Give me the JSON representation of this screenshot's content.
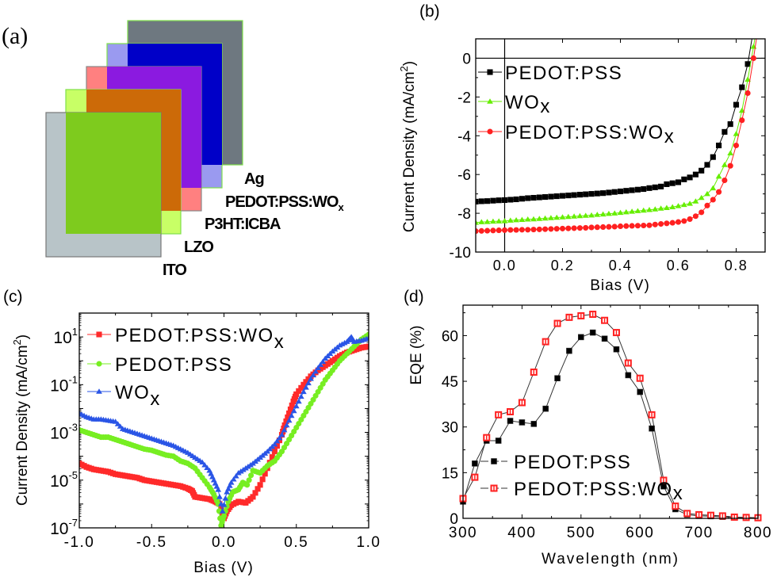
{
  "panel_labels": {
    "a": "(a)",
    "b": "(b)",
    "c": "(c)",
    "d": "(d)"
  },
  "device_stack": {
    "layers": [
      {
        "name": "Ag",
        "color": "#6e7880",
        "edge": "#7fe04a"
      },
      {
        "name": "PEDOT:PSS:WOx",
        "label_main": "PEDOT:PSS:WO",
        "label_sub": "x",
        "color": "#0000c8",
        "light": "#9a9af0",
        "edge": "#7fe04a"
      },
      {
        "name": "P3HT:ICBA",
        "color": "#8b1ae0",
        "light": "#ff8080",
        "edge": "#888888"
      },
      {
        "name": "LZO",
        "color": "#cc6a08",
        "light": "#c8ff66",
        "edge": "#7fe04a"
      },
      {
        "name": "ITO",
        "color": "#7ecb1e",
        "light": "#b8c4c8",
        "edge": "#777777"
      }
    ]
  },
  "chart_data": [
    {
      "id": "b",
      "type": "line",
      "title": "",
      "xlabel": "Bias (V)",
      "ylabel": "Current Density (mA/cm",
      "ylabel_sup": "2",
      "ylabel_end": ")",
      "xlim": [
        -0.1,
        0.9
      ],
      "ylim": [
        -10,
        1
      ],
      "xticks": [
        0.0,
        0.2,
        0.4,
        0.6,
        0.8
      ],
      "xtick_labels": [
        "0.0",
        "0.2",
        "0.4",
        "0.6",
        "0.8"
      ],
      "yticks": [
        0,
        -2,
        -4,
        -6,
        -8,
        -10
      ],
      "ytick_labels": [
        "0",
        "-2",
        "-4",
        "-6",
        "-8",
        "-10"
      ],
      "reference_lines": {
        "x": 0,
        "y": 0
      },
      "legend_position": "top-left",
      "series": [
        {
          "name": "PEDOT:PSS",
          "label_main": "PEDOT:PSS",
          "label_sub": "",
          "color": "#000000",
          "marker": "square",
          "x": [
            -0.1,
            -0.08,
            -0.06,
            -0.04,
            -0.02,
            0,
            0.02,
            0.04,
            0.06,
            0.08,
            0.1,
            0.12,
            0.14,
            0.16,
            0.18,
            0.2,
            0.22,
            0.24,
            0.26,
            0.28,
            0.3,
            0.32,
            0.34,
            0.36,
            0.38,
            0.4,
            0.42,
            0.44,
            0.46,
            0.48,
            0.5,
            0.52,
            0.54,
            0.56,
            0.58,
            0.6,
            0.62,
            0.64,
            0.66,
            0.68,
            0.7,
            0.72,
            0.74,
            0.76,
            0.78,
            0.8,
            0.82,
            0.84,
            0.86
          ],
          "y": [
            -7.4,
            -7.38,
            -7.37,
            -7.35,
            -7.33,
            -7.32,
            -7.3,
            -7.28,
            -7.25,
            -7.22,
            -7.2,
            -7.18,
            -7.16,
            -7.14,
            -7.12,
            -7.1,
            -7.08,
            -7.06,
            -7.04,
            -7.02,
            -7.0,
            -6.98,
            -6.96,
            -6.93,
            -6.9,
            -6.87,
            -6.84,
            -6.81,
            -6.78,
            -6.75,
            -6.7,
            -6.66,
            -6.62,
            -6.5,
            -6.45,
            -6.4,
            -6.25,
            -6.15,
            -6.0,
            -5.8,
            -5.5,
            -5.1,
            -4.5,
            -3.8,
            -3.4,
            -2.4,
            -1.5,
            -0.3,
            1.5
          ]
        },
        {
          "name": "WOx",
          "label_main": "WO",
          "label_sub": "x",
          "color": "#66ee00",
          "marker": "triangle",
          "x": [
            -0.1,
            -0.08,
            -0.06,
            -0.04,
            -0.02,
            0,
            0.02,
            0.04,
            0.06,
            0.08,
            0.1,
            0.12,
            0.14,
            0.16,
            0.18,
            0.2,
            0.22,
            0.24,
            0.26,
            0.28,
            0.3,
            0.32,
            0.34,
            0.36,
            0.38,
            0.4,
            0.42,
            0.44,
            0.46,
            0.48,
            0.5,
            0.52,
            0.54,
            0.56,
            0.58,
            0.6,
            0.62,
            0.64,
            0.66,
            0.68,
            0.7,
            0.72,
            0.74,
            0.76,
            0.78,
            0.8,
            0.82,
            0.84,
            0.86,
            0.87
          ],
          "y": [
            -8.48,
            -8.45,
            -8.44,
            -8.42,
            -8.41,
            -8.4,
            -8.37,
            -8.35,
            -8.33,
            -8.31,
            -8.3,
            -8.28,
            -8.26,
            -8.24,
            -8.22,
            -8.2,
            -8.18,
            -8.16,
            -8.14,
            -8.12,
            -8.1,
            -8.07,
            -8.05,
            -8.02,
            -8.0,
            -7.97,
            -7.94,
            -7.91,
            -7.88,
            -7.85,
            -7.82,
            -7.79,
            -7.75,
            -7.72,
            -7.68,
            -7.62,
            -7.56,
            -7.5,
            -7.38,
            -7.2,
            -7.0,
            -6.7,
            -6.1,
            -5.5,
            -4.9,
            -3.9,
            -2.7,
            -1.1,
            0.6,
            1.5
          ]
        },
        {
          "name": "PEDOT:PSS:WOx",
          "label_main": "PEDOT:PSS:WO",
          "label_sub": "x",
          "color": "#ff2020",
          "marker": "circle",
          "x": [
            -0.1,
            -0.08,
            -0.06,
            -0.04,
            -0.02,
            0,
            0.02,
            0.04,
            0.06,
            0.08,
            0.1,
            0.12,
            0.14,
            0.16,
            0.18,
            0.2,
            0.22,
            0.24,
            0.26,
            0.28,
            0.3,
            0.32,
            0.34,
            0.36,
            0.38,
            0.4,
            0.42,
            0.44,
            0.46,
            0.48,
            0.5,
            0.52,
            0.54,
            0.56,
            0.58,
            0.6,
            0.62,
            0.64,
            0.66,
            0.68,
            0.7,
            0.72,
            0.74,
            0.76,
            0.78,
            0.8,
            0.82,
            0.84,
            0.86,
            0.875
          ],
          "y": [
            -8.92,
            -8.91,
            -8.9,
            -8.89,
            -8.88,
            -8.87,
            -8.86,
            -8.86,
            -8.85,
            -8.85,
            -8.84,
            -8.83,
            -8.82,
            -8.81,
            -8.8,
            -8.79,
            -8.78,
            -8.77,
            -8.76,
            -8.75,
            -8.73,
            -8.72,
            -8.71,
            -8.7,
            -8.69,
            -8.67,
            -8.66,
            -8.65,
            -8.64,
            -8.63,
            -8.62,
            -8.58,
            -8.55,
            -8.52,
            -8.49,
            -8.45,
            -8.4,
            -8.3,
            -8.15,
            -7.95,
            -7.6,
            -7.3,
            -6.9,
            -6.3,
            -5.55,
            -4.5,
            -3.2,
            -1.8,
            0.0,
            1.5
          ]
        }
      ]
    },
    {
      "id": "c",
      "type": "scatter",
      "title": "",
      "xlabel": "Bias (V)",
      "ylabel": "Current Density (mA/cm",
      "ylabel_sup": "2",
      "ylabel_end": ")",
      "yscale": "log",
      "xlim": [
        -1.0,
        1.0
      ],
      "ylim_log10": [
        -7,
        2
      ],
      "xticks": [
        -1.0,
        -0.5,
        0.0,
        0.5,
        1.0
      ],
      "xtick_labels": [
        "-1.0",
        "-0.5",
        "0.0",
        "0.5",
        "1.0"
      ],
      "yticks_log10": [
        1,
        -1,
        -3,
        -5,
        -7
      ],
      "ytick_labels": [
        {
          "base": "10",
          "exp": "1"
        },
        {
          "base": "10",
          "exp": "-1"
        },
        {
          "base": "10",
          "exp": "-3"
        },
        {
          "base": "10",
          "exp": "-5"
        },
        {
          "base": "10",
          "exp": "-7"
        }
      ],
      "legend_position": "top-left",
      "series": [
        {
          "name": "PEDOT:PSS:WOx",
          "label_main": "PEDOT:PSS:WO",
          "label_sub": "x",
          "color": "#ff2a2a",
          "marker": "square",
          "x": [
            -1.0,
            -0.95,
            -0.9,
            -0.85,
            -0.8,
            -0.75,
            -0.7,
            -0.65,
            -0.6,
            -0.55,
            -0.5,
            -0.45,
            -0.4,
            -0.35,
            -0.3,
            -0.25,
            -0.22,
            -0.2,
            -0.15,
            -0.1,
            -0.06,
            -0.03,
            0.0,
            0.02,
            0.05,
            0.1,
            0.15,
            0.2,
            0.25,
            0.3,
            0.35,
            0.4,
            0.42,
            0.45,
            0.48,
            0.5,
            0.55,
            0.6,
            0.65,
            0.7,
            0.75,
            0.8,
            0.85,
            0.9,
            0.95,
            1.0
          ],
          "log10_y": [
            -4.3,
            -4.45,
            -4.55,
            -4.6,
            -4.65,
            -4.75,
            -4.8,
            -4.85,
            -4.9,
            -5.0,
            -5.05,
            -5.1,
            -5.15,
            -5.2,
            -5.25,
            -5.35,
            -5.45,
            -5.7,
            -5.75,
            -5.8,
            -5.9,
            -6.0,
            -6.6,
            -6.3,
            -6.05,
            -5.9,
            -5.95,
            -5.7,
            -5.2,
            -4.5,
            -3.8,
            -3.1,
            -2.7,
            -2.2,
            -1.7,
            -1.4,
            -1.0,
            -0.65,
            -0.4,
            -0.2,
            0.0,
            0.2,
            0.35,
            0.45,
            0.55,
            0.6
          ]
        },
        {
          "name": "PEDOT:PSS",
          "label_main": "PEDOT:PSS",
          "label_sub": "",
          "color": "#77ee22",
          "marker": "circle",
          "x": [
            -1.0,
            -0.95,
            -0.9,
            -0.85,
            -0.8,
            -0.75,
            -0.7,
            -0.65,
            -0.6,
            -0.55,
            -0.5,
            -0.45,
            -0.4,
            -0.35,
            -0.3,
            -0.25,
            -0.2,
            -0.15,
            -0.1,
            -0.07,
            -0.04,
            -0.02,
            0.0,
            0.03,
            0.06,
            0.1,
            0.13,
            0.16,
            0.2,
            0.25,
            0.3,
            0.35,
            0.4,
            0.45,
            0.5,
            0.55,
            0.6,
            0.65,
            0.7,
            0.75,
            0.8,
            0.85,
            0.9,
            0.95,
            1.0
          ],
          "log10_y": [
            -2.9,
            -3.0,
            -3.1,
            -3.2,
            -3.2,
            -3.3,
            -3.4,
            -3.5,
            -3.6,
            -3.7,
            -3.75,
            -3.85,
            -3.95,
            -4.0,
            -4.2,
            -4.3,
            -4.5,
            -4.9,
            -5.3,
            -5.6,
            -6.0,
            -6.9,
            -6.5,
            -5.9,
            -5.5,
            -5.4,
            -5.1,
            -5.2,
            -4.6,
            -4.7,
            -4.4,
            -4.2,
            -3.8,
            -3.3,
            -2.8,
            -2.3,
            -1.8,
            -1.3,
            -0.8,
            -0.4,
            0.0,
            0.3,
            0.6,
            0.9,
            1.1
          ]
        },
        {
          "name": "WOx",
          "label_main": "WO",
          "label_sub": "x",
          "color": "#2a55e6",
          "marker": "triangle",
          "x": [
            -1.0,
            -0.95,
            -0.9,
            -0.85,
            -0.8,
            -0.75,
            -0.7,
            -0.65,
            -0.6,
            -0.55,
            -0.5,
            -0.45,
            -0.4,
            -0.35,
            -0.3,
            -0.25,
            -0.2,
            -0.15,
            -0.1,
            -0.07,
            -0.04,
            -0.01,
            0.02,
            0.05,
            0.1,
            0.15,
            0.2,
            0.25,
            0.3,
            0.35,
            0.4,
            0.45,
            0.5,
            0.55,
            0.6,
            0.65,
            0.7,
            0.75,
            0.8,
            0.85,
            0.88,
            0.9,
            0.95,
            1.0
          ],
          "log10_y": [
            -2.2,
            -2.35,
            -2.45,
            -2.45,
            -2.5,
            -2.55,
            -2.85,
            -2.95,
            -3.05,
            -3.15,
            -3.25,
            -3.35,
            -3.45,
            -3.55,
            -3.7,
            -3.85,
            -4.05,
            -4.25,
            -4.6,
            -5.0,
            -5.4,
            -6.3,
            -5.5,
            -5.1,
            -4.7,
            -4.5,
            -4.3,
            -4.05,
            -3.8,
            -3.5,
            -3.1,
            -2.5,
            -1.9,
            -1.3,
            -0.75,
            -0.3,
            0.1,
            0.4,
            0.65,
            0.8,
            1.0,
            0.8,
            0.85,
            0.95
          ]
        }
      ]
    },
    {
      "id": "d",
      "type": "line",
      "title": "",
      "xlabel": "Wavelength (nm)",
      "ylabel": "EQE (%)",
      "xlim": [
        300,
        800
      ],
      "ylim": [
        0,
        70
      ],
      "xticks": [
        300,
        400,
        500,
        600,
        700,
        800
      ],
      "xtick_labels": [
        "300",
        "400",
        "500",
        "600",
        "700",
        "800"
      ],
      "yticks": [
        0,
        15,
        30,
        45,
        60
      ],
      "ytick_labels": [
        "0",
        "15",
        "30",
        "45",
        "60"
      ],
      "legend_position": "bottom-left",
      "series": [
        {
          "name": "PEDOT:PSS",
          "label_main": "PEDOT:PSS",
          "label_sub": "",
          "color": "#000000",
          "marker": "square-filled",
          "x": [
            300,
            320,
            340,
            360,
            380,
            400,
            420,
            440,
            460,
            480,
            500,
            520,
            540,
            560,
            580,
            600,
            620,
            640,
            660,
            680,
            700,
            720,
            740,
            760,
            780,
            800
          ],
          "y": [
            5.5,
            18,
            25.5,
            25.5,
            32,
            31.5,
            31,
            36,
            46,
            55,
            59.5,
            61,
            59,
            55.5,
            47,
            41.5,
            29.5,
            10.5,
            3,
            1.2,
            0.8,
            0.7,
            0.5,
            0.3,
            0.2,
            0.1
          ]
        },
        {
          "name": "PEDOT:PSS:WOx",
          "label_main": "PEDOT:PSS:WO",
          "label_sub": "x",
          "color": "#ff2020",
          "marker": "square-open",
          "x": [
            300,
            320,
            340,
            360,
            380,
            400,
            420,
            440,
            460,
            480,
            500,
            520,
            540,
            560,
            580,
            600,
            620,
            640,
            660,
            680,
            700,
            720,
            740,
            760,
            780,
            800
          ],
          "y": [
            6.5,
            13.5,
            26.5,
            34,
            35,
            38,
            48,
            58,
            64,
            66,
            66.5,
            67,
            65,
            61,
            51,
            46,
            34,
            12.5,
            4,
            1.6,
            1.2,
            1.0,
            0.8,
            0.4,
            0.3,
            0.2
          ]
        }
      ]
    }
  ]
}
